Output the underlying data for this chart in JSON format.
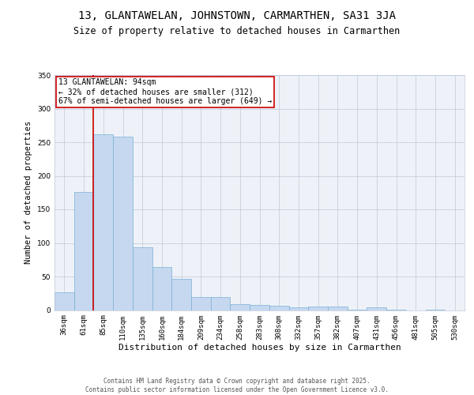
{
  "title1": "13, GLANTAWELAN, JOHNSTOWN, CARMARTHEN, SA31 3JA",
  "title2": "Size of property relative to detached houses in Carmarthen",
  "xlabel": "Distribution of detached houses by size in Carmarthen",
  "ylabel": "Number of detached properties",
  "categories": [
    "36sqm",
    "61sqm",
    "85sqm",
    "110sqm",
    "135sqm",
    "160sqm",
    "184sqm",
    "209sqm",
    "234sqm",
    "258sqm",
    "283sqm",
    "308sqm",
    "332sqm",
    "357sqm",
    "382sqm",
    "407sqm",
    "431sqm",
    "456sqm",
    "481sqm",
    "505sqm",
    "530sqm"
  ],
  "values": [
    26,
    176,
    262,
    258,
    94,
    64,
    46,
    20,
    20,
    9,
    8,
    6,
    4,
    5,
    5,
    1,
    4,
    1,
    0,
    1,
    0
  ],
  "bar_color": "#c5d8f0",
  "bar_edge_color": "#7bafd4",
  "grid_color": "#c0c8d8",
  "bg_color": "#eef2f8",
  "annotation_box_text": "13 GLANTAWELAN: 94sqm\n← 32% of detached houses are smaller (312)\n67% of semi-detached houses are larger (649) →",
  "annotation_box_color": "#cc0000",
  "ylim": [
    0,
    350
  ],
  "yticks": [
    0,
    50,
    100,
    150,
    200,
    250,
    300,
    350
  ],
  "footer_text": "Contains HM Land Registry data © Crown copyright and database right 2025.\nContains public sector information licensed under the Open Government Licence v3.0.",
  "title_fontsize": 10,
  "subtitle_fontsize": 8.5,
  "ylabel_fontsize": 7.5,
  "xlabel_fontsize": 8,
  "tick_fontsize": 6.5,
  "ann_fontsize": 7,
  "footer_fontsize": 5.5
}
